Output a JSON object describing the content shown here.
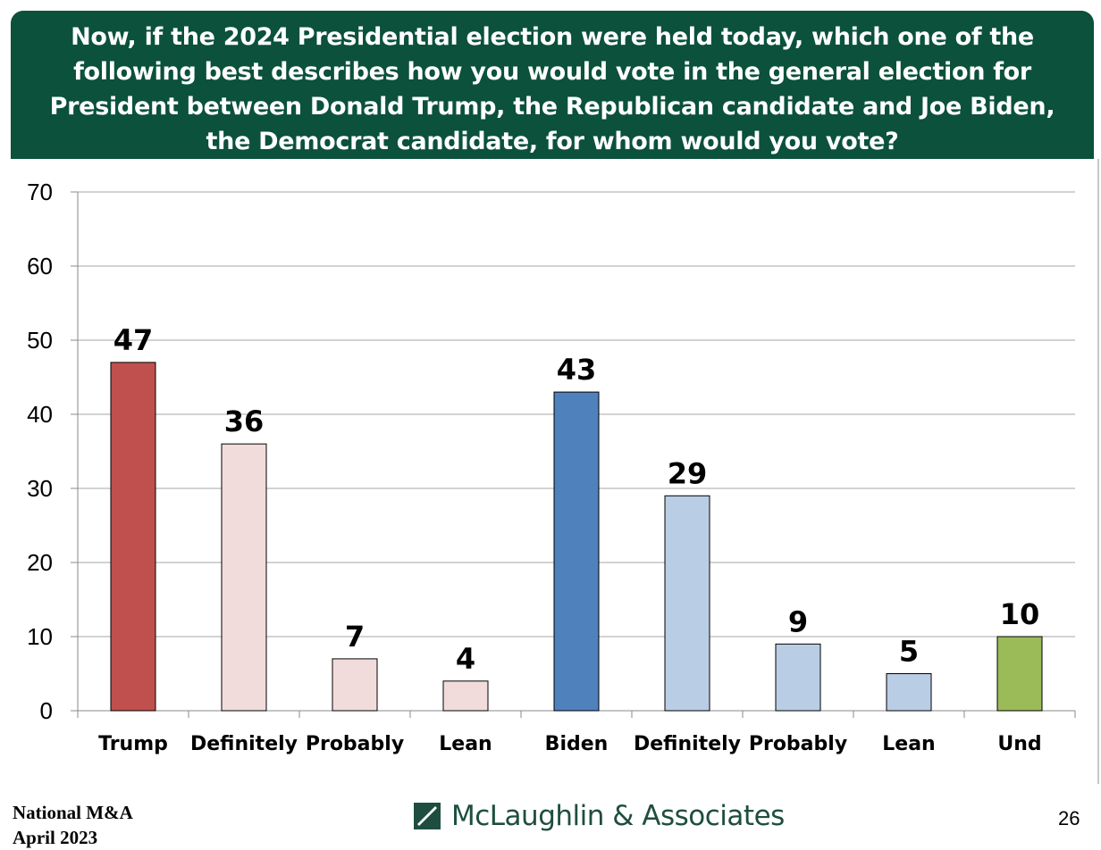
{
  "header": {
    "question": "Now, if the 2024 Presidential election were held today, which one of the following best describes how you would vote in the general election for President between Donald Trump, the Republican candidate and Joe Biden, the Democrat candidate, for whom would you vote?"
  },
  "footer": {
    "line1": "National M&A",
    "line2": "April 2023",
    "logo_text": "McLaughlin & Associates",
    "page_number": "26"
  },
  "colors": {
    "banner": "#0b513b",
    "trump": "#c0504d",
    "trump_light": "#f2dcdb",
    "biden": "#4f81bd",
    "biden_light": "#b9cde5",
    "undecided": "#9bbb59"
  },
  "chart_data": {
    "type": "bar",
    "title": "",
    "xlabel": "",
    "ylabel": "",
    "ylim": [
      0,
      70
    ],
    "yticks": [
      0,
      10,
      20,
      30,
      40,
      50,
      60,
      70
    ],
    "grid": true,
    "categories": [
      "Trump",
      "Definitely",
      "Probably",
      "Lean",
      "Biden",
      "Definitely",
      "Probably",
      "Lean",
      "Und"
    ],
    "values": [
      47,
      36,
      7,
      4,
      43,
      29,
      9,
      5,
      10
    ],
    "bar_colors": [
      "#c0504d",
      "#f2dcdb",
      "#f2dcdb",
      "#f2dcdb",
      "#4f81bd",
      "#b9cde5",
      "#b9cde5",
      "#b9cde5",
      "#9bbb59"
    ],
    "data_labels": [
      "47",
      "36",
      "7",
      "4",
      "43",
      "29",
      "9",
      "5",
      "10"
    ]
  }
}
